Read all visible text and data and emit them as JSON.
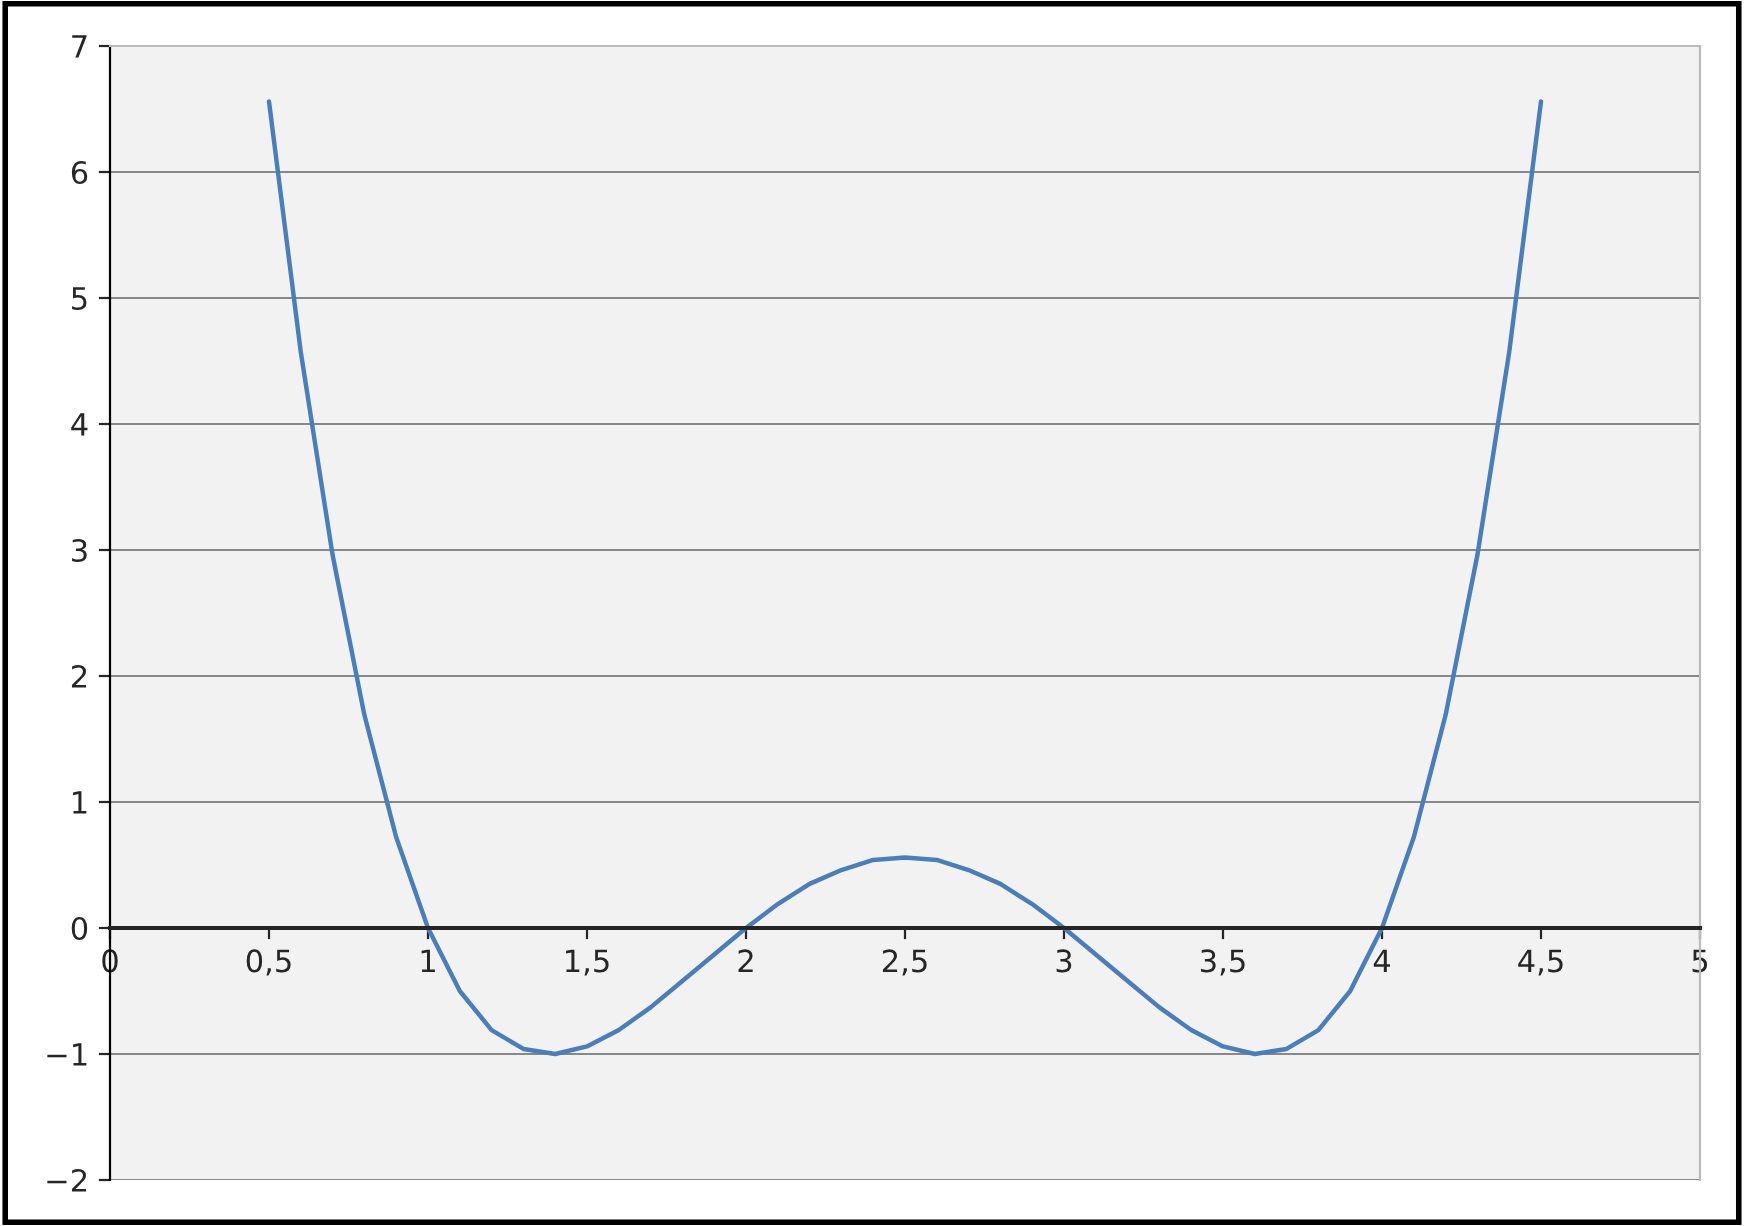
{
  "chart_data": {
    "type": "line",
    "x": [
      0.5,
      0.6,
      0.7,
      0.8,
      0.9,
      1.0,
      1.1,
      1.2,
      1.3,
      1.4,
      1.5,
      1.6,
      1.7,
      1.8,
      1.9,
      2.0,
      2.1,
      2.2,
      2.3,
      2.4,
      2.5,
      2.6,
      2.7,
      2.8,
      2.9,
      3.0,
      3.1,
      3.2,
      3.3,
      3.4,
      3.5,
      3.6,
      3.7,
      3.8,
      3.9,
      4.0,
      4.1,
      4.2,
      4.3,
      4.4,
      4.5
    ],
    "series": [
      {
        "color": "#4a7ebb",
        "values": [
          6.56,
          4.57,
          2.96,
          1.69,
          0.72,
          0,
          -0.5,
          -0.81,
          -0.96,
          -1.0,
          -0.94,
          -0.81,
          -0.63,
          -0.42,
          -0.21,
          0,
          0.19,
          0.35,
          0.46,
          0.54,
          0.56,
          0.54,
          0.46,
          0.35,
          0.19,
          0,
          -0.21,
          -0.42,
          -0.63,
          -0.81,
          -0.94,
          -1.0,
          -0.96,
          -0.81,
          -0.5,
          0,
          0.72,
          1.69,
          2.96,
          4.57,
          6.56
        ]
      }
    ],
    "xlim": [
      0,
      5
    ],
    "ylim": [
      -2,
      7
    ],
    "xticks": [
      0,
      {
        "value": 0.5,
        "label": "0,5"
      },
      1,
      {
        "value": 1.5,
        "label": "1,5"
      },
      2,
      {
        "value": 2.5,
        "label": "2,5"
      },
      3,
      {
        "value": 3.5,
        "label": "3,5"
      },
      4,
      {
        "value": 4.5,
        "label": "4,5"
      },
      5
    ],
    "yticks": [
      {
        "value": -2,
        "label": "−2"
      },
      {
        "value": -1,
        "label": "−1"
      },
      0,
      1,
      2,
      3,
      4,
      5,
      6,
      7
    ],
    "grid": "y",
    "legend": false,
    "marker": "none",
    "line_style": "solid"
  }
}
